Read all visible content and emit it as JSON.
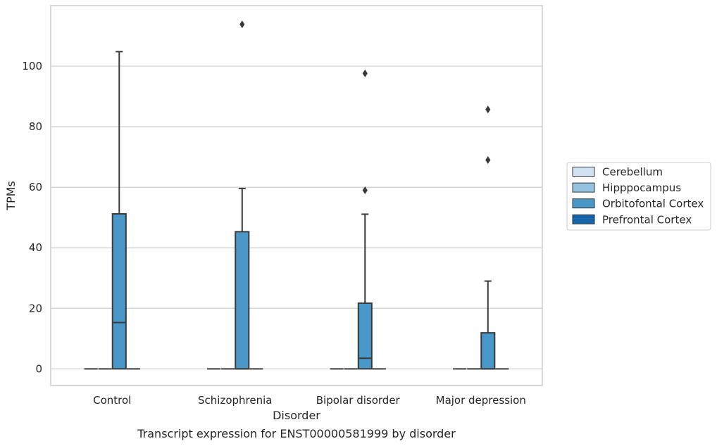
{
  "chart_data": {
    "type": "box",
    "xlabel": "Disorder",
    "ylabel": "TPMs",
    "caption": "Transcript expression for ENST00000581999 by disorder",
    "categories": [
      "Control",
      "Schizophrenia",
      "Bipolar disorder",
      "Major depression"
    ],
    "ylim": [
      -5.5,
      120
    ],
    "yticks": [
      0,
      20,
      40,
      60,
      80,
      100
    ],
    "grid": "horizontal",
    "legend_position": "right",
    "series": [
      {
        "name": "Cerebellum",
        "color": "#d0e1f2",
        "boxes": [
          {
            "q1": 0,
            "median": 0,
            "q3": 0,
            "whisker_low": 0,
            "whisker_high": 0,
            "outliers": []
          },
          {
            "q1": 0,
            "median": 0,
            "q3": 0,
            "whisker_low": 0,
            "whisker_high": 0,
            "outliers": []
          },
          {
            "q1": 0,
            "median": 0,
            "q3": 0,
            "whisker_low": 0,
            "whisker_high": 0,
            "outliers": []
          },
          {
            "q1": 0,
            "median": 0,
            "q3": 0,
            "whisker_low": 0,
            "whisker_high": 0,
            "outliers": []
          }
        ]
      },
      {
        "name": "Hipppocampus",
        "color": "#94c4df",
        "boxes": [
          {
            "q1": 0,
            "median": 0,
            "q3": 0,
            "whisker_low": 0,
            "whisker_high": 0,
            "outliers": []
          },
          {
            "q1": 0,
            "median": 0,
            "q3": 0,
            "whisker_low": 0,
            "whisker_high": 0,
            "outliers": []
          },
          {
            "q1": 0,
            "median": 0,
            "q3": 0,
            "whisker_low": 0,
            "whisker_high": 0,
            "outliers": []
          },
          {
            "q1": 0,
            "median": 0,
            "q3": 0,
            "whisker_low": 0,
            "whisker_high": 0,
            "outliers": []
          }
        ]
      },
      {
        "name": "Orbitofontal Cortex",
        "color": "#4a98c9",
        "boxes": [
          {
            "q1": 0,
            "median": 15.3,
            "q3": 51.2,
            "whisker_low": 0,
            "whisker_high": 104.8,
            "outliers": []
          },
          {
            "q1": 0,
            "median": 0,
            "q3": 45.3,
            "whisker_low": 0,
            "whisker_high": 59.6,
            "outliers": [
              113.8
            ]
          },
          {
            "q1": 0,
            "median": 3.5,
            "q3": 21.7,
            "whisker_low": 0,
            "whisker_high": 51.1,
            "outliers": [
              59.0,
              97.6
            ]
          },
          {
            "q1": 0,
            "median": 0,
            "q3": 11.9,
            "whisker_low": 0,
            "whisker_high": 29.0,
            "outliers": [
              69.0,
              85.7
            ]
          }
        ]
      },
      {
        "name": "Prefrontal Cortex",
        "color": "#1764ab",
        "boxes": [
          {
            "q1": 0,
            "median": 0,
            "q3": 0,
            "whisker_low": 0,
            "whisker_high": 0,
            "outliers": []
          },
          {
            "q1": 0,
            "median": 0,
            "q3": 0,
            "whisker_low": 0,
            "whisker_high": 0,
            "outliers": []
          },
          {
            "q1": 0,
            "median": 0,
            "q3": 0,
            "whisker_low": 0,
            "whisker_high": 0,
            "outliers": []
          },
          {
            "q1": 0,
            "median": 0,
            "q3": 0,
            "whisker_low": 0,
            "whisker_high": 0,
            "outliers": []
          }
        ]
      }
    ]
  }
}
